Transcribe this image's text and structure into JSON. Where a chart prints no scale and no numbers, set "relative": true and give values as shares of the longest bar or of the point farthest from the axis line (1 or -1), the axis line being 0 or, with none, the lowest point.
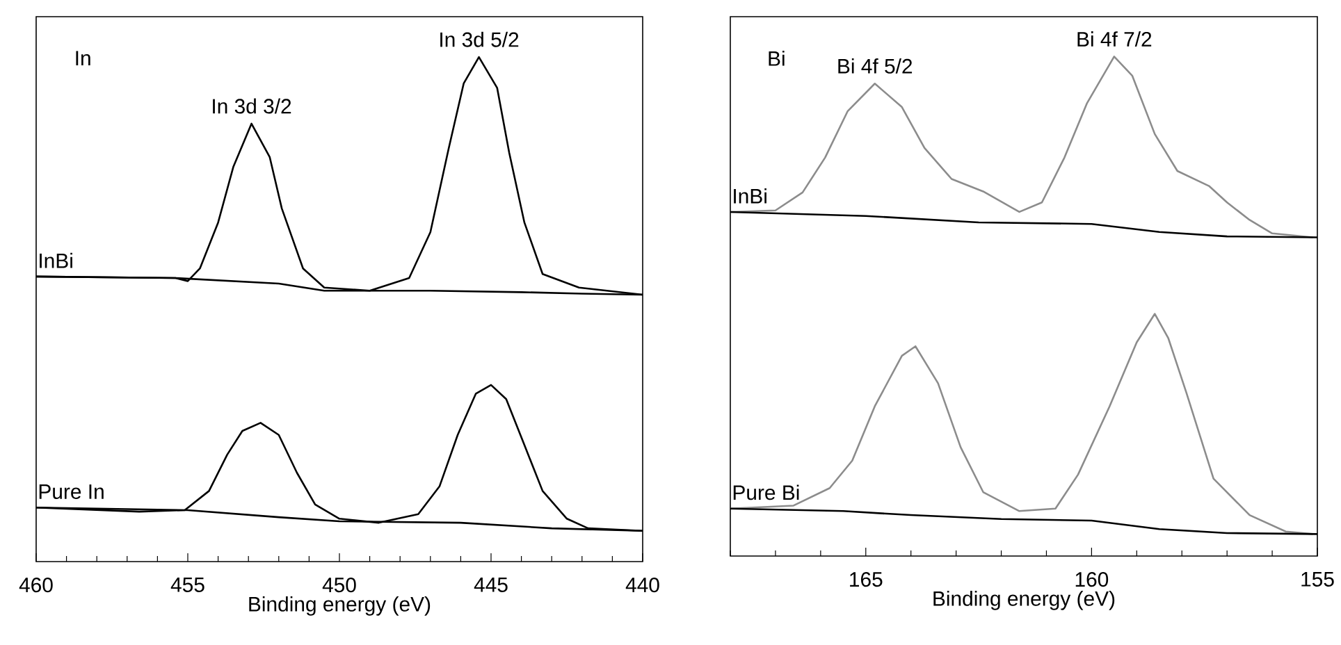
{
  "chart_data": [
    {
      "type": "line",
      "relative": true,
      "xlabel": "Binding energy (eV)",
      "xlim": [
        460,
        440
      ],
      "xticks": [
        460,
        455,
        450,
        445,
        440
      ],
      "series": [
        {
          "name": "InBi",
          "color": "#000000",
          "x": [
            460,
            455.4,
            455.0,
            454.6,
            454.0,
            453.5,
            452.9,
            452.3,
            451.9,
            451.2,
            450.5,
            449.0,
            447.7,
            447.0,
            446.4,
            445.9,
            445.4,
            444.8,
            444.4,
            443.9,
            443.3,
            442.1,
            440
          ],
          "values": [
            0.565,
            0.562,
            0.556,
            0.581,
            0.672,
            0.782,
            0.868,
            0.802,
            0.7,
            0.581,
            0.543,
            0.537,
            0.562,
            0.653,
            0.818,
            0.948,
            1.0,
            0.939,
            0.81,
            0.672,
            0.57,
            0.543,
            0.529
          ]
        },
        {
          "color": "#000000",
          "x": [
            460,
            455.4,
            452,
            450.5,
            447,
            444,
            442,
            440
          ],
          "values": [
            0.565,
            0.562,
            0.551,
            0.537,
            0.537,
            0.534,
            0.531,
            0.529
          ]
        },
        {
          "name": "Pure In",
          "color": "#000000",
          "x": [
            460,
            456.6,
            455.1,
            454.3,
            453.7,
            453.2,
            452.6,
            452.0,
            451.4,
            450.8,
            450.0,
            448.7,
            447.4,
            446.7,
            446.1,
            445.5,
            445.0,
            444.5,
            443.9,
            443.3,
            442.5,
            441.8,
            440
          ],
          "values": [
            0.107,
            0.099,
            0.102,
            0.14,
            0.212,
            0.259,
            0.275,
            0.251,
            0.176,
            0.113,
            0.085,
            0.077,
            0.094,
            0.149,
            0.251,
            0.333,
            0.35,
            0.322,
            0.231,
            0.14,
            0.085,
            0.066,
            0.061
          ]
        },
        {
          "color": "#000000",
          "x": [
            460,
            455,
            452,
            450,
            446,
            443,
            440
          ],
          "values": [
            0.107,
            0.102,
            0.088,
            0.08,
            0.077,
            0.066,
            0.061
          ]
        }
      ],
      "annotations": [
        "In",
        {
          "text": "In 3d 3/2",
          "x": 452.9,
          "y": 0.868
        },
        {
          "text": "In 3d 5/2",
          "x": 445.4,
          "y": 1.0
        }
      ]
    },
    {
      "type": "line",
      "relative": true,
      "xlabel": "Binding energy (eV)",
      "xlim": [
        168,
        155
      ],
      "xticks": [
        165,
        160,
        155
      ],
      "series": [
        {
          "name": "InBi",
          "color": "#8c8c8c",
          "x": [
            168.0,
            167.0,
            166.4,
            165.9,
            165.4,
            164.8,
            164.2,
            163.7,
            163.1,
            162.4,
            161.6,
            161.1,
            160.6,
            160.1,
            159.5,
            159.1,
            158.6,
            158.1,
            157.4,
            157.0,
            156.5,
            156.0,
            155.1
          ],
          "values": [
            0.689,
            0.692,
            0.728,
            0.798,
            0.891,
            0.946,
            0.899,
            0.817,
            0.755,
            0.73,
            0.689,
            0.708,
            0.798,
            0.907,
            1.0,
            0.962,
            0.845,
            0.771,
            0.741,
            0.708,
            0.673,
            0.646,
            0.638
          ]
        },
        {
          "color": "#000000",
          "x": [
            168,
            165,
            162.5,
            160,
            158.5,
            157,
            155
          ],
          "values": [
            0.689,
            0.681,
            0.668,
            0.665,
            0.649,
            0.64,
            0.638
          ]
        },
        {
          "name": "Pure Bi",
          "color": "#8c8c8c",
          "x": [
            168.0,
            166.6,
            165.8,
            165.3,
            164.8,
            164.2,
            163.9,
            163.4,
            162.9,
            162.4,
            161.6,
            160.8,
            160.3,
            159.6,
            159.0,
            158.6,
            158.3,
            157.9,
            157.3,
            156.5,
            155.7,
            155.1
          ],
          "values": [
            0.095,
            0.101,
            0.136,
            0.191,
            0.3,
            0.401,
            0.42,
            0.346,
            0.218,
            0.128,
            0.09,
            0.095,
            0.163,
            0.3,
            0.428,
            0.485,
            0.436,
            0.327,
            0.155,
            0.082,
            0.049,
            0.044
          ]
        },
        {
          "color": "#000000",
          "x": [
            168,
            165.5,
            164,
            162,
            160,
            158.5,
            157,
            155
          ],
          "values": [
            0.095,
            0.09,
            0.082,
            0.074,
            0.071,
            0.054,
            0.046,
            0.044
          ]
        }
      ],
      "annotations": [
        "Bi",
        {
          "text": "Bi 4f 5/2",
          "x": 164.8,
          "y": 0.946
        },
        {
          "text": "Bi 4f 7/2",
          "x": 159.5,
          "y": 1.0
        }
      ]
    }
  ]
}
